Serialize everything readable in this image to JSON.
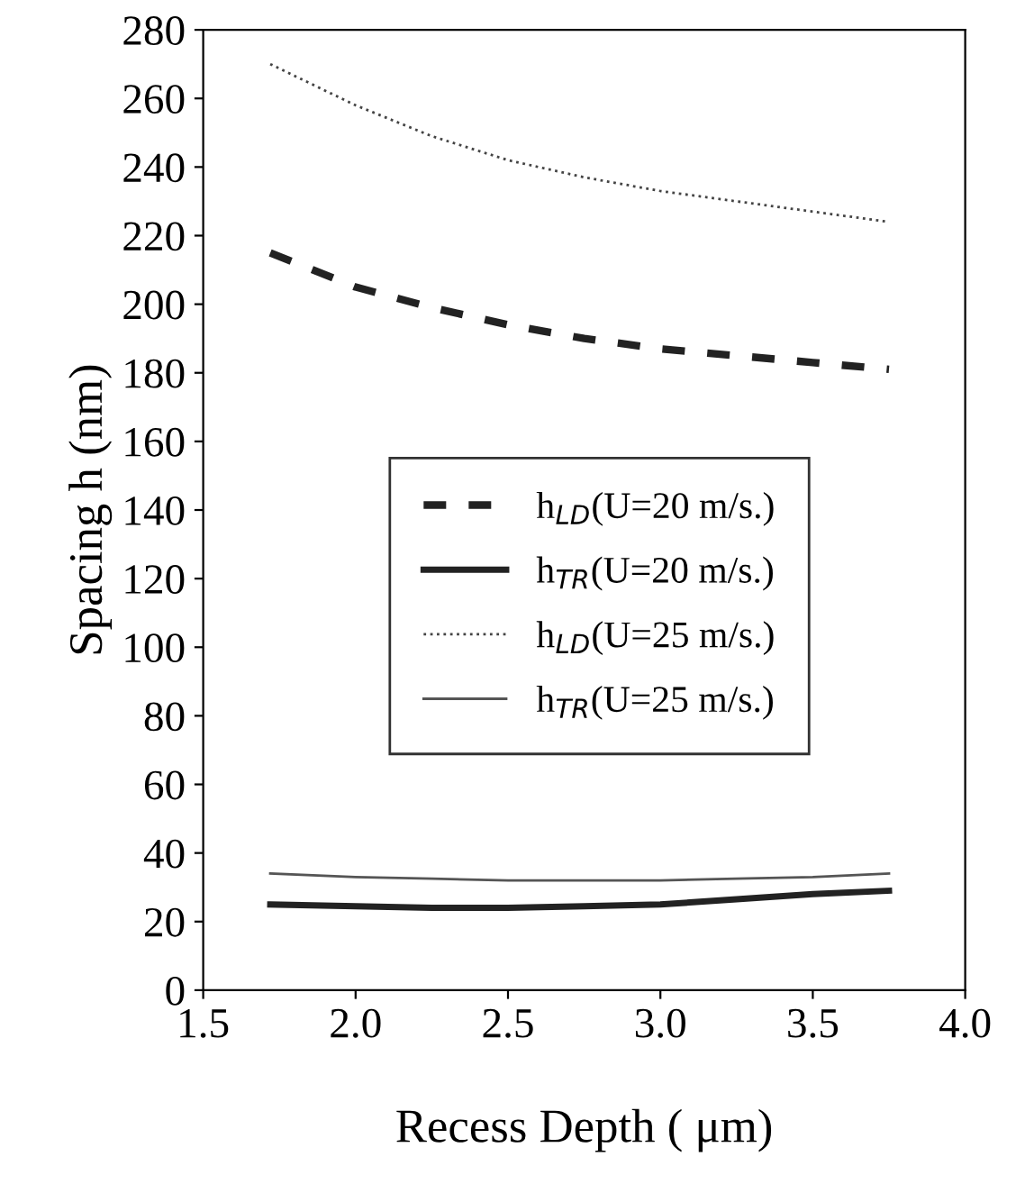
{
  "chart_data": {
    "type": "line",
    "xlabel": "Recess Depth ( μm)",
    "ylabel": "Spacing h (nm)",
    "x": [
      1.72,
      2.0,
      2.25,
      2.5,
      2.75,
      3.0,
      3.25,
      3.5,
      3.75
    ],
    "series": [
      {
        "name": "h$_{LD}$(U=20 m/s.)",
        "color": "#222222",
        "line_style": "dashed",
        "values": [
          215,
          205,
          199,
          194,
          190,
          187,
          185,
          183,
          181
        ]
      },
      {
        "name": "h$_{TR}$(U=20 m/s.)",
        "color": "#222222",
        "values": [
          25,
          24.5,
          24,
          24,
          24.5,
          25,
          26.5,
          28,
          29
        ]
      },
      {
        "name": "h$_{LD}$(U=25 m/s.)",
        "color": "#444444",
        "line_style": "dotted",
        "values": [
          270,
          258,
          249,
          242,
          237,
          233,
          230,
          227,
          224
        ]
      },
      {
        "name": "h$_{TR}$(U=25 m/s.)",
        "color": "#555555",
        "values": [
          34,
          33,
          32.5,
          32,
          32,
          32,
          32.5,
          33,
          34
        ]
      }
    ],
    "xlim": [
      1.5,
      4.0
    ],
    "xticks": [
      {
        "value": 1.5,
        "label": "1.5"
      },
      {
        "value": 2.0,
        "label": "2.0"
      },
      {
        "value": 2.5,
        "label": "2.5"
      },
      {
        "value": 3.0,
        "label": "3.0"
      },
      {
        "value": 3.5,
        "label": "3.5"
      },
      {
        "value": 4.0,
        "label": "4.0"
      }
    ],
    "ylim": [
      0,
      280
    ],
    "yticks": [
      0,
      20,
      40,
      60,
      80,
      100,
      120,
      140,
      160,
      180,
      200,
      220,
      240,
      260,
      280
    ],
    "grid": false,
    "legend": "center"
  }
}
